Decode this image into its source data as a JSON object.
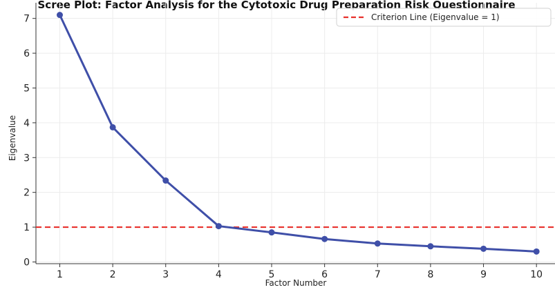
{
  "chart_data": {
    "type": "line",
    "title": "Scree Plot: Factor Analysis for the Cytotoxic Drug Preparation Risk Questionnaire",
    "xlabel": "Factor Number",
    "ylabel": "Eigenvalue",
    "x": [
      1,
      2,
      3,
      4,
      5,
      6,
      7,
      8,
      9,
      10
    ],
    "xlim": [
      0.55,
      10.35
    ],
    "ylim": [
      -0.05,
      7.45
    ],
    "yticks": [
      0,
      1,
      2,
      3,
      4,
      5,
      6,
      7
    ],
    "grid": true,
    "legend_position": "top-right",
    "series": [
      {
        "values": [
          7.1,
          3.87,
          2.34,
          1.03,
          0.85,
          0.66,
          0.53,
          0.45,
          0.38,
          0.3
        ],
        "color": "#3f4fa8",
        "marker": "circle"
      }
    ],
    "reference_lines": [
      {
        "orientation": "horizontal",
        "y": 1,
        "label": "Criterion Line (Eigenvalue = 1)",
        "color": "#e8302b",
        "style": "dashed"
      }
    ]
  }
}
